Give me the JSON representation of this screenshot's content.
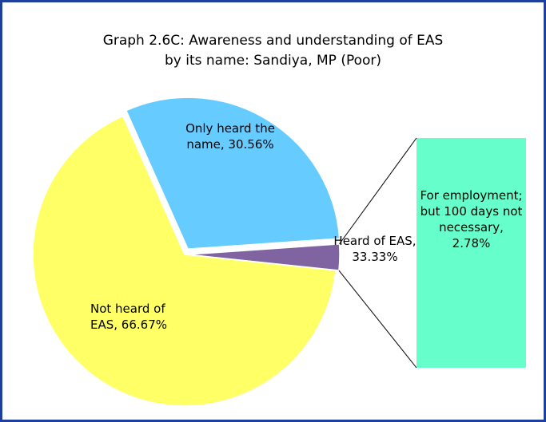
{
  "chart_data": {
    "type": "bar-of-pie",
    "title": [
      "Graph 2.6C: Awareness and understanding of EAS",
      "by its name: Sandiya, MP (Poor)"
    ],
    "categories": [
      "Not heard of EAS",
      "Only heard the name"
    ],
    "values": [
      66.67,
      30.56
    ],
    "value_labels": [
      "Not heard of EAS, 66.67%",
      "Only heard the name, 30.56%"
    ],
    "colors": [
      "#ffff66",
      "#66ccff"
    ],
    "other": {
      "value": 33.33,
      "value_label": "Heard of EAS, 33.33%",
      "color": "#8064a2"
    },
    "bar": {
      "values": [
        2.78
      ],
      "value_labels": [
        "For employment; but 100 days not necessary, 2.78%"
      ],
      "color": "#66ffcc"
    }
  }
}
